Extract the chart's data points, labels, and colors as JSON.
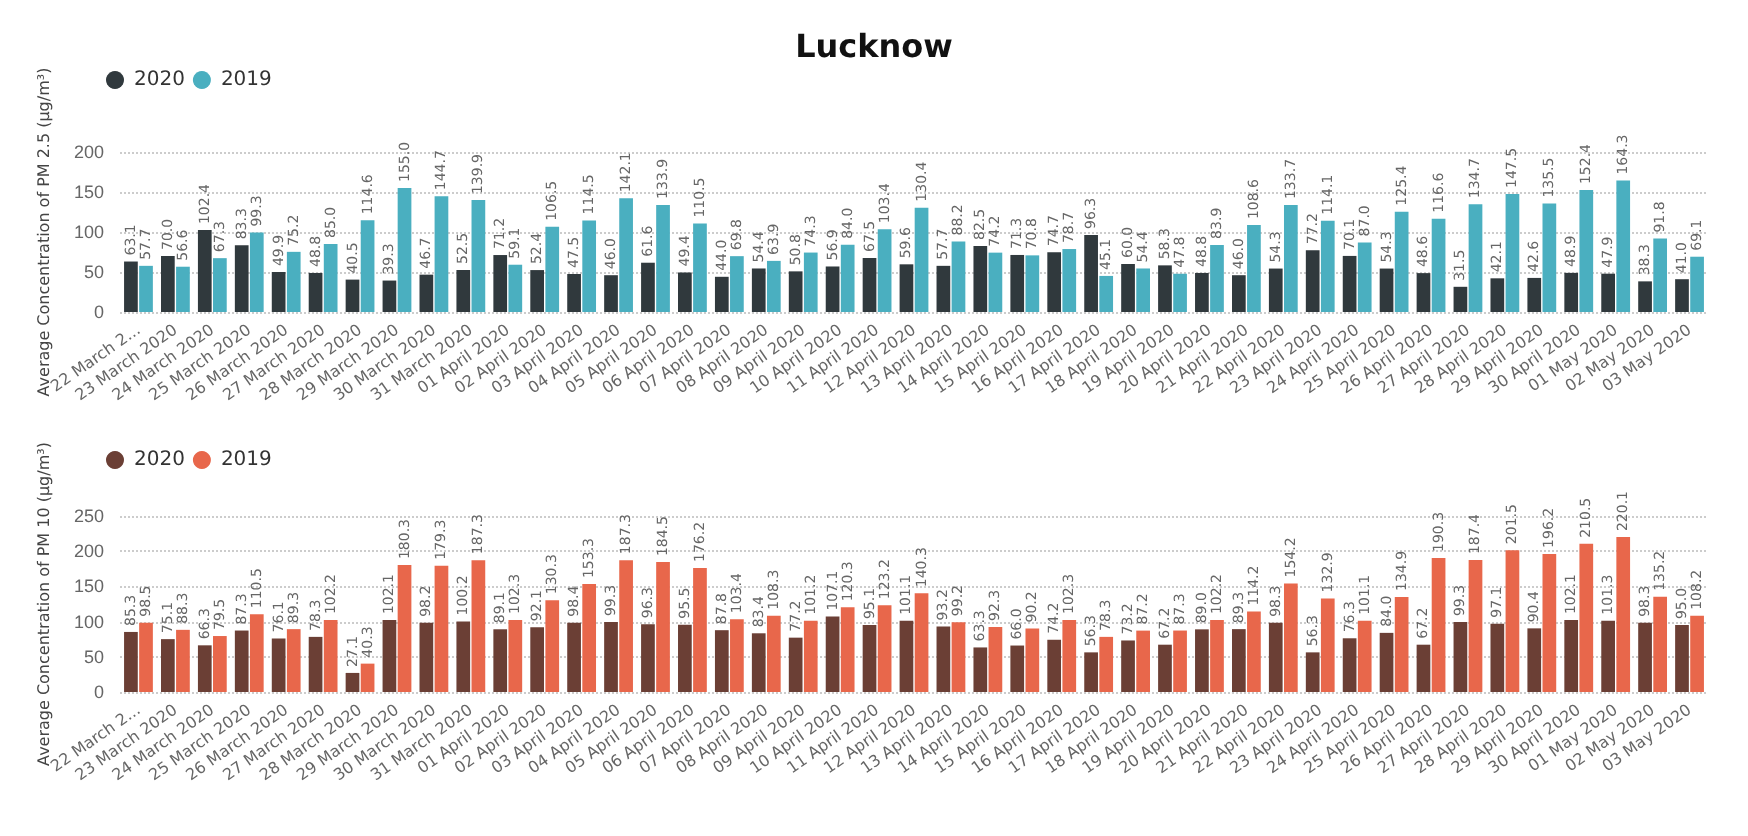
{
  "chart_data": [
    {
      "type": "bar",
      "title": "Lucknow",
      "ylabel": "Average Concentration of PM 2.5 (µg/m³)",
      "categories": [
        "22 March 2...",
        "23 March 2020",
        "24 March 2020",
        "25 March 2020",
        "26 March 2020",
        "27 March 2020",
        "28 March 2020",
        "29 March 2020",
        "30 March 2020",
        "31 March 2020",
        "01 April 2020",
        "02 April 2020",
        "03 April 2020",
        "04 April 2020",
        "05 April 2020",
        "06 April 2020",
        "07 April 2020",
        "08 April 2020",
        "09 April 2020",
        "10 April 2020",
        "11 April 2020",
        "12 April 2020",
        "13 April 2020",
        "14 April 2020",
        "15 April 2020",
        "16 April 2020",
        "17 April 2020",
        "18 April 2020",
        "19 April 2020",
        "20 April 2020",
        "21 April 2020",
        "22 April 2020",
        "23 April 2020",
        "24 April 2020",
        "25 April 2020",
        "26 April 2020",
        "27 April 2020",
        "28 April 2020",
        "29 April 2020",
        "30 April 2020",
        "01 May 2020",
        "02 May 2020",
        "03 May 2020"
      ],
      "series": [
        {
          "name": "2020",
          "color": "#30393d",
          "values": [
            63.1,
            70.0,
            102.4,
            83.3,
            49.9,
            48.8,
            40.5,
            39.3,
            46.7,
            52.5,
            71.2,
            52.4,
            47.5,
            46.0,
            61.6,
            49.4,
            44.0,
            54.4,
            50.8,
            56.9,
            67.5,
            59.6,
            57.7,
            82.5,
            71.3,
            74.7,
            96.3,
            60.0,
            58.3,
            48.8,
            46.0,
            54.3,
            77.2,
            70.1,
            54.3,
            48.6,
            31.5,
            42.1,
            42.6,
            48.9,
            47.9,
            38.3,
            41.0
          ],
          "value_labels": [
            "63.1",
            "70.0",
            "102.4",
            "83.3",
            "49.9",
            "48.8",
            "40.5",
            "39.3",
            "46.7",
            "52.5",
            "71.2",
            "52.4",
            "47.5",
            "46.0",
            "61.6",
            "49.4",
            "44.0",
            "54.4",
            "50.8",
            "56.9",
            "67.5",
            "59.6",
            "57.7",
            "82.5",
            "71.3",
            "74.7",
            "96.3",
            "60.0",
            "58.3",
            "48.8",
            "46.0",
            "54.3",
            "77.2",
            "70.1",
            "54.3",
            "48.6",
            "31.5",
            "42.1",
            "42.6",
            "48.9",
            "47.9",
            "38.3",
            "41.0"
          ]
        },
        {
          "name": "2019",
          "color": "#4aafc0",
          "values": [
            57.7,
            56.6,
            67.3,
            99.3,
            75.2,
            85.0,
            114.6,
            155.0,
            144.7,
            139.9,
            59.1,
            106.5,
            114.5,
            142.1,
            133.9,
            110.5,
            69.8,
            63.9,
            74.3,
            84.0,
            103.4,
            130.4,
            88.2,
            74.2,
            70.8,
            78.7,
            45.1,
            54.4,
            47.8,
            83.9,
            108.6,
            133.7,
            114.1,
            87.0,
            125.4,
            116.6,
            134.7,
            147.5,
            135.5,
            152.4,
            164.3,
            91.8,
            69.1
          ],
          "value_labels": [
            "57.7",
            "56.6",
            "67.3",
            "99.3",
            "75.2",
            "85.0",
            "114.6",
            "155.0",
            "144.7",
            "139.9",
            "59.1",
            "106.5",
            "114.5",
            "142.1",
            "133.9",
            "110.5",
            "69.8",
            "63.9",
            "74.3",
            "84.0",
            "103.4",
            "130.4",
            "88.2",
            "74.2",
            "70.8",
            "78.7",
            "45.1",
            "54.4",
            "47.8",
            "83.9",
            "108.6",
            "133.7",
            "114.1",
            "87.0",
            "125.4",
            "116.6",
            "134.7",
            "147.5",
            "135.5",
            "152.4",
            "164.3",
            "91.8",
            "69.1"
          ]
        }
      ],
      "ylim": [
        0,
        200
      ],
      "yticks": [
        0,
        50,
        100,
        150,
        200
      ],
      "grid": "y",
      "legend": "top left"
    },
    {
      "type": "bar",
      "ylabel": "Average Concentration of PM 10 (µg/m³)",
      "categories": [
        "22 March 2...",
        "23 March 2020",
        "24 March 2020",
        "25 March 2020",
        "26 March 2020",
        "27 March 2020",
        "28 March 2020",
        "29 March 2020",
        "30 March 2020",
        "31 March 2020",
        "01 April 2020",
        "02 April 2020",
        "03 April 2020",
        "04 April 2020",
        "05 April 2020",
        "06 April 2020",
        "07 April 2020",
        "08 April 2020",
        "09 April 2020",
        "10 April 2020",
        "11 April 2020",
        "12 April 2020",
        "13 April 2020",
        "14 April 2020",
        "15 April 2020",
        "16 April 2020",
        "17 April 2020",
        "18 April 2020",
        "19 April 2020",
        "20 April 2020",
        "21 April 2020",
        "22 April 2020",
        "23 April 2020",
        "24 April 2020",
        "25 April 2020",
        "26 April 2020",
        "27 April 2020",
        "28 April 2020",
        "29 April 2020",
        "30 April 2020",
        "01 May 2020",
        "02 May 2020",
        "03 May 2020"
      ],
      "series": [
        {
          "name": "2020",
          "color": "#6b3f35",
          "values": [
            85.3,
            75.1,
            66.3,
            87.3,
            76.1,
            78.3,
            27.1,
            102.1,
            98.2,
            100.2,
            89.1,
            92.1,
            98.4,
            99.3,
            96.3,
            95.5,
            87.8,
            83.4,
            77.2,
            107.1,
            95.1,
            101.1,
            93.2,
            63.3,
            66.0,
            74.2,
            56.3,
            73.2,
            67.2,
            89.0,
            89.3,
            98.3,
            56.3,
            76.3,
            84.0,
            67.2,
            99.3,
            97.1,
            90.4,
            102.1,
            101.3,
            98.3,
            95.0
          ],
          "value_labels": [
            "85.3",
            "75.1",
            "66.3",
            "87.3",
            "76.1",
            "78.3",
            "27.1",
            "102.1",
            "98.2",
            "100.2",
            "89.1",
            "92.1",
            "98.4",
            "99.3",
            "96.3",
            "95.5",
            "87.8",
            "83.4",
            "77.2",
            "107.1",
            "95.1",
            "101.1",
            "93.2",
            "63.3",
            "66.0",
            "74.2",
            "56.3",
            "73.2",
            "67.2",
            "89.0",
            "89.3",
            "98.3",
            "56.3",
            "76.3",
            "84.0",
            "67.2",
            "99.3",
            "97.1",
            "90.4",
            "102.1",
            "101.3",
            "98.3",
            "95.0"
          ]
        },
        {
          "name": "2019",
          "color": "#e8674b",
          "values": [
            98.5,
            88.3,
            79.5,
            110.5,
            89.3,
            102.2,
            40.3,
            180.3,
            179.3,
            187.3,
            102.3,
            130.3,
            153.3,
            187.3,
            184.5,
            176.2,
            103.4,
            108.3,
            101.2,
            120.3,
            123.2,
            140.3,
            99.2,
            92.3,
            90.2,
            102.3,
            78.3,
            87.2,
            87.3,
            102.2,
            114.2,
            154.2,
            132.9,
            101.1,
            134.9,
            190.3,
            187.4,
            201.5,
            196.2,
            210.5,
            220.1,
            135.2,
            108.2
          ],
          "value_labels": [
            "98.5",
            "88.3",
            "79.5",
            "110.5",
            "89.3",
            "102.2",
            "40.3",
            "180.3",
            "179.3",
            "187.3",
            "102.3",
            "130.3",
            "153.3",
            "187.3",
            "184.5",
            "176.2",
            "103.4",
            "108.3",
            "101.2",
            "120.3",
            "123.2",
            "140.3",
            "99.2",
            "92.3",
            "90.2",
            "102.3",
            "78.3",
            "87.2",
            "87.3",
            "102.2",
            "114.2",
            "154.2",
            "132.9",
            "101.1",
            "134.9",
            "190.3",
            "187.4",
            "201.5",
            "196.2",
            "210.5",
            "220.1",
            "135.2",
            "108.2"
          ]
        }
      ],
      "ylim": [
        0,
        250
      ],
      "yticks": [
        0,
        50,
        100,
        150,
        200,
        250
      ],
      "grid": "y",
      "legend": "top left"
    }
  ]
}
